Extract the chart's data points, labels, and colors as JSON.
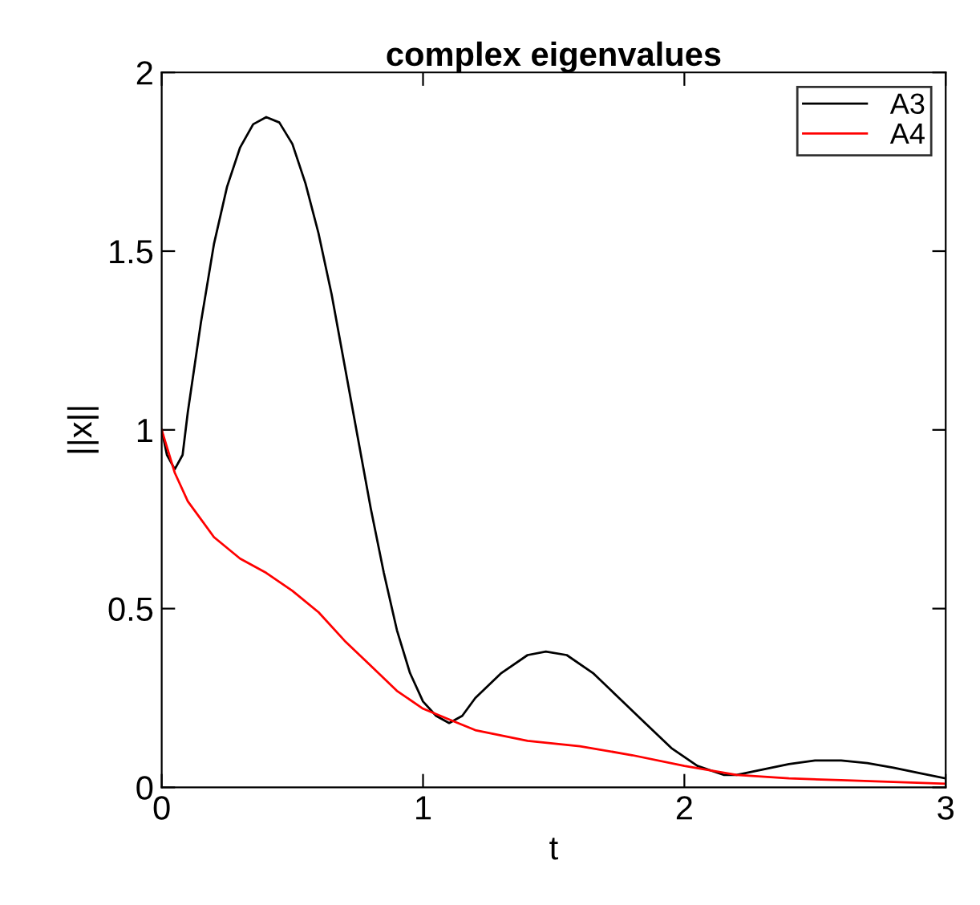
{
  "chart_data": {
    "type": "line",
    "title": "complex eigenvalues",
    "xlabel": "t",
    "ylabel": "||x||",
    "xlim": [
      0,
      3
    ],
    "ylim": [
      0,
      2
    ],
    "xticks": [
      0,
      1,
      2,
      3
    ],
    "yticks": [
      0,
      0.5,
      1,
      1.5,
      2
    ],
    "grid": false,
    "legend": "top right",
    "line_style": "solid",
    "marker": "none",
    "series": [
      {
        "name": "A3",
        "color": "#000000",
        "x": [
          0,
          0.02,
          0.05,
          0.08,
          0.1,
          0.15,
          0.2,
          0.25,
          0.3,
          0.35,
          0.4,
          0.45,
          0.5,
          0.55,
          0.6,
          0.65,
          0.7,
          0.75,
          0.8,
          0.85,
          0.9,
          0.95,
          1.0,
          1.05,
          1.1,
          1.15,
          1.2,
          1.3,
          1.4,
          1.47,
          1.55,
          1.65,
          1.75,
          1.85,
          1.95,
          2.05,
          2.15,
          2.2,
          2.3,
          2.4,
          2.5,
          2.6,
          2.7,
          2.8,
          2.9,
          3.0
        ],
        "values": [
          1.0,
          0.93,
          0.89,
          0.93,
          1.05,
          1.3,
          1.52,
          1.68,
          1.79,
          1.855,
          1.875,
          1.86,
          1.8,
          1.69,
          1.55,
          1.38,
          1.18,
          0.98,
          0.78,
          0.6,
          0.44,
          0.32,
          0.24,
          0.2,
          0.18,
          0.2,
          0.25,
          0.32,
          0.37,
          0.38,
          0.37,
          0.32,
          0.25,
          0.18,
          0.11,
          0.06,
          0.035,
          0.035,
          0.05,
          0.065,
          0.075,
          0.075,
          0.068,
          0.055,
          0.04,
          0.025
        ]
      },
      {
        "name": "A4",
        "color": "#ff0000",
        "x": [
          0,
          0.05,
          0.1,
          0.2,
          0.3,
          0.4,
          0.5,
          0.6,
          0.7,
          0.8,
          0.9,
          1.0,
          1.1,
          1.2,
          1.4,
          1.6,
          1.8,
          2.0,
          2.2,
          2.4,
          2.6,
          2.8,
          3.0
        ],
        "values": [
          1.0,
          0.88,
          0.8,
          0.7,
          0.64,
          0.6,
          0.55,
          0.49,
          0.41,
          0.34,
          0.27,
          0.22,
          0.19,
          0.16,
          0.13,
          0.115,
          0.09,
          0.06,
          0.035,
          0.025,
          0.02,
          0.015,
          0.01
        ]
      }
    ]
  }
}
